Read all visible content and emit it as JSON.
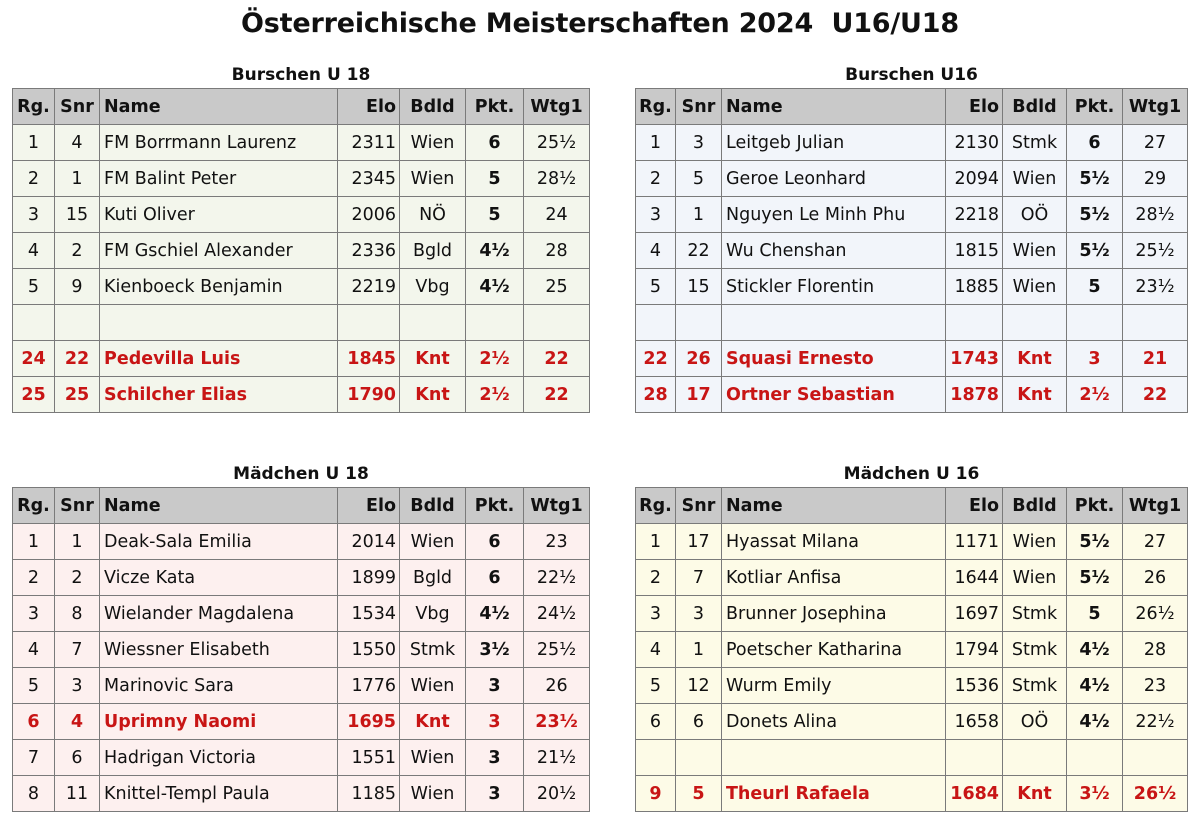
{
  "title": "Österreichische Meisterschaften 2024  U16/U18",
  "columns": [
    "Rg.",
    "Snr",
    "Name",
    "Elo",
    "Bdld",
    "Pkt.",
    "Wtg1"
  ],
  "tables": [
    {
      "title": "Burschen U 18",
      "rows": [
        {
          "rg": "1",
          "snr": "4",
          "name": "FM Borrmann Laurenz",
          "elo": "2311",
          "bdld": "Wien",
          "pkt": "6",
          "wtg": "25½"
        },
        {
          "rg": "2",
          "snr": "1",
          "name": "FM Balint Peter",
          "elo": "2345",
          "bdld": "Wien",
          "pkt": "5",
          "wtg": "28½"
        },
        {
          "rg": "3",
          "snr": "15",
          "name": "Kuti Oliver",
          "elo": "2006",
          "bdld": "NÖ",
          "pkt": "5",
          "wtg": "24"
        },
        {
          "rg": "4",
          "snr": "2",
          "name": "FM Gschiel Alexander",
          "elo": "2336",
          "bdld": "Bgld",
          "pkt": "4½",
          "wtg": "28"
        },
        {
          "rg": "5",
          "snr": "9",
          "name": "Kienboeck Benjamin",
          "elo": "2219",
          "bdld": "Vbg",
          "pkt": "4½",
          "wtg": "25"
        },
        {
          "rg": "",
          "snr": "",
          "name": "",
          "elo": "",
          "bdld": "",
          "pkt": "",
          "wtg": ""
        },
        {
          "rg": "24",
          "snr": "22",
          "name": "Pedevilla Luis",
          "elo": "1845",
          "bdld": "Knt",
          "pkt": "2½",
          "wtg": "22"
        },
        {
          "rg": "25",
          "snr": "25",
          "name": "Schilcher Elias",
          "elo": "1790",
          "bdld": "Knt",
          "pkt": "2½",
          "wtg": "22"
        }
      ]
    },
    {
      "title": "Burschen U16",
      "rows": [
        {
          "rg": "1",
          "snr": "3",
          "name": "Leitgeb Julian",
          "elo": "2130",
          "bdld": "Stmk",
          "pkt": "6",
          "wtg": "27"
        },
        {
          "rg": "2",
          "snr": "5",
          "name": "Geroe Leonhard",
          "elo": "2094",
          "bdld": "Wien",
          "pkt": "5½",
          "wtg": "29"
        },
        {
          "rg": "3",
          "snr": "1",
          "name": "Nguyen Le Minh Phu",
          "elo": "2218",
          "bdld": "OÖ",
          "pkt": "5½",
          "wtg": "28½"
        },
        {
          "rg": "4",
          "snr": "22",
          "name": "Wu Chenshan",
          "elo": "1815",
          "bdld": "Wien",
          "pkt": "5½",
          "wtg": "25½"
        },
        {
          "rg": "5",
          "snr": "15",
          "name": "Stickler Florentin",
          "elo": "1885",
          "bdld": "Wien",
          "pkt": "5",
          "wtg": "23½"
        },
        {
          "rg": "",
          "snr": "",
          "name": "",
          "elo": "",
          "bdld": "",
          "pkt": "",
          "wtg": ""
        },
        {
          "rg": "22",
          "snr": "26",
          "name": "Squasi Ernesto",
          "elo": "1743",
          "bdld": "Knt",
          "pkt": "3",
          "wtg": "21"
        },
        {
          "rg": "28",
          "snr": "17",
          "name": "Ortner Sebastian",
          "elo": "1878",
          "bdld": "Knt",
          "pkt": "2½",
          "wtg": "22"
        }
      ]
    },
    {
      "title": "Mädchen U 18",
      "rows": [
        {
          "rg": "1",
          "snr": "1",
          "name": "Deak-Sala Emilia",
          "elo": "2014",
          "bdld": "Wien",
          "pkt": "6",
          "wtg": "23"
        },
        {
          "rg": "2",
          "snr": "2",
          "name": "Vicze Kata",
          "elo": "1899",
          "bdld": "Bgld",
          "pkt": "6",
          "wtg": "22½"
        },
        {
          "rg": "3",
          "snr": "8",
          "name": "Wielander Magdalena",
          "elo": "1534",
          "bdld": "Vbg",
          "pkt": "4½",
          "wtg": "24½"
        },
        {
          "rg": "4",
          "snr": "7",
          "name": "Wiessner Elisabeth",
          "elo": "1550",
          "bdld": "Stmk",
          "pkt": "3½",
          "wtg": "25½"
        },
        {
          "rg": "5",
          "snr": "3",
          "name": "Marinovic Sara",
          "elo": "1776",
          "bdld": "Wien",
          "pkt": "3",
          "wtg": "26"
        },
        {
          "rg": "6",
          "snr": "4",
          "name": "Uprimny Naomi",
          "elo": "1695",
          "bdld": "Knt",
          "pkt": "3",
          "wtg": "23½"
        },
        {
          "rg": "7",
          "snr": "6",
          "name": "Hadrigan Victoria",
          "elo": "1551",
          "bdld": "Wien",
          "pkt": "3",
          "wtg": "21½"
        },
        {
          "rg": "8",
          "snr": "11",
          "name": "Knittel-Templ Paula",
          "elo": "1185",
          "bdld": "Wien",
          "pkt": "3",
          "wtg": "20½"
        }
      ]
    },
    {
      "title": "Mädchen U 16",
      "rows": [
        {
          "rg": "1",
          "snr": "17",
          "name": "Hyassat Milana",
          "elo": "1171",
          "bdld": "Wien",
          "pkt": "5½",
          "wtg": "27"
        },
        {
          "rg": "2",
          "snr": "7",
          "name": "Kotliar Anfisa",
          "elo": "1644",
          "bdld": "Wien",
          "pkt": "5½",
          "wtg": "26"
        },
        {
          "rg": "3",
          "snr": "3",
          "name": "Brunner Josephina",
          "elo": "1697",
          "bdld": "Stmk",
          "pkt": "5",
          "wtg": "26½"
        },
        {
          "rg": "4",
          "snr": "1",
          "name": "Poetscher Katharina",
          "elo": "1794",
          "bdld": "Stmk",
          "pkt": "4½",
          "wtg": "28"
        },
        {
          "rg": "5",
          "snr": "12",
          "name": "Wurm Emily",
          "elo": "1536",
          "bdld": "Stmk",
          "pkt": "4½",
          "wtg": "23"
        },
        {
          "rg": "6",
          "snr": "6",
          "name": "Donets Alina",
          "elo": "1658",
          "bdld": "OÖ",
          "pkt": "4½",
          "wtg": "22½"
        },
        {
          "rg": "",
          "snr": "",
          "name": "",
          "elo": "",
          "bdld": "",
          "pkt": "",
          "wtg": ""
        },
        {
          "rg": "9",
          "snr": "5",
          "name": "Theurl Rafaela",
          "elo": "1684",
          "bdld": "Knt",
          "pkt": "3½",
          "wtg": "26½"
        }
      ]
    }
  ],
  "colors": {
    "header_bg": "#c9c9c9",
    "grid": "#7a7a7a",
    "highlight_text": "#c81515",
    "burschen_u18_bg": "#f3f6ec",
    "burschen_u16_bg": "#f2f5fa",
    "maedchen_u18_bg": "#fdf0ef",
    "maedchen_u16_bg": "#fdfbe7"
  }
}
